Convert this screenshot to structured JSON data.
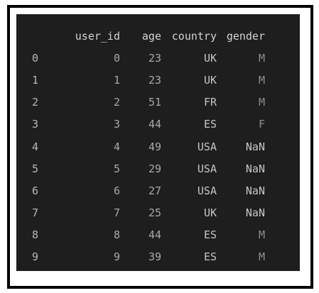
{
  "dataframe": {
    "columns": [
      "",
      "user_id",
      "age",
      "country",
      "gender"
    ],
    "rows": [
      [
        "0",
        "0",
        "23",
        "UK",
        "M"
      ],
      [
        "1",
        "1",
        "23",
        "UK",
        "M"
      ],
      [
        "2",
        "2",
        "51",
        "FR",
        "M"
      ],
      [
        "3",
        "3",
        "44",
        "ES",
        "F"
      ],
      [
        "4",
        "4",
        "49",
        "USA",
        "NaN"
      ],
      [
        "5",
        "5",
        "29",
        "USA",
        "NaN"
      ],
      [
        "6",
        "6",
        "27",
        "USA",
        "NaN"
      ],
      [
        "7",
        "7",
        "25",
        "UK",
        "NaN"
      ],
      [
        "8",
        "8",
        "44",
        "ES",
        "M"
      ],
      [
        "9",
        "9",
        "39",
        "ES",
        "M"
      ]
    ]
  },
  "colors": {
    "console_background": "#1e1e1e",
    "text": "#cccccc",
    "frame_border": "#000000"
  }
}
